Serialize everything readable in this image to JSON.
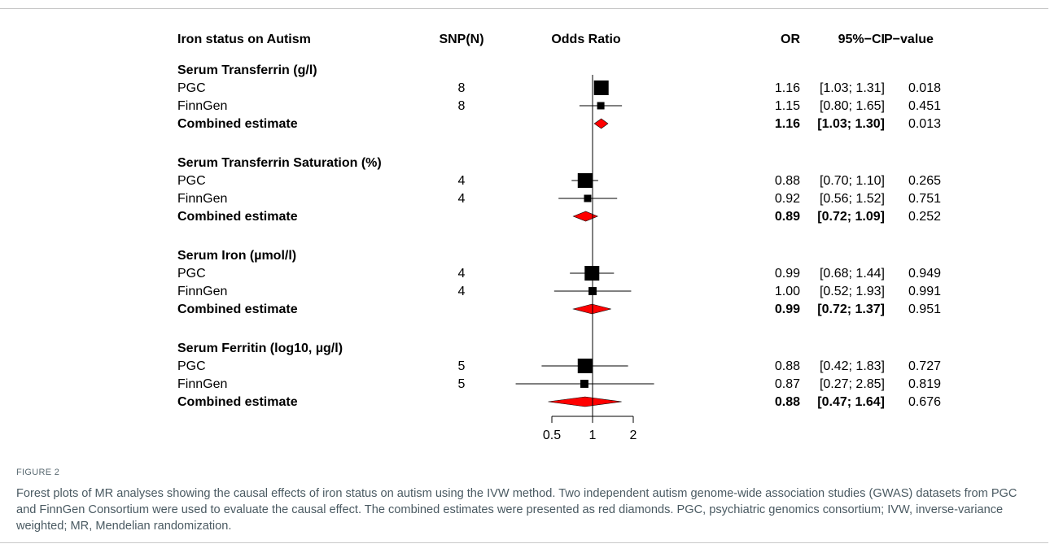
{
  "chart_data": {
    "type": "forest",
    "headers": {
      "study": "Iron status on Autism",
      "snp": "SNP(N)",
      "plot": "Odds Ratio",
      "or": "OR",
      "ci": "95%−CI",
      "p": "P−value"
    },
    "scale": "log",
    "xlim": [
      0.5,
      2
    ],
    "xticks": [
      {
        "value": 0.5,
        "label": "0.5"
      },
      {
        "value": 1,
        "label": "1"
      },
      {
        "value": 2,
        "label": "2"
      }
    ],
    "reference_line": 1,
    "groups": [
      {
        "title": "Serum Transferrin (g/l)",
        "rows": [
          {
            "label": "PGC",
            "snp": "8",
            "or": 1.16,
            "lo": 1.03,
            "hi": 1.31,
            "or_text": "1.16",
            "ci_text": "[1.03; 1.31]",
            "p_text": "0.018",
            "weight": 1.0
          },
          {
            "label": "FinnGen",
            "snp": "8",
            "or": 1.15,
            "lo": 0.8,
            "hi": 1.65,
            "or_text": "1.15",
            "ci_text": "[0.80; 1.65]",
            "p_text": "0.451",
            "weight": 0.5
          }
        ],
        "combined": {
          "label": "Combined estimate",
          "or": 1.16,
          "lo": 1.03,
          "hi": 1.3,
          "or_text": "1.16",
          "ci_text": "[1.03; 1.30]",
          "p_text": "0.013"
        }
      },
      {
        "title": "Serum Transferrin Saturation (%)",
        "rows": [
          {
            "label": "PGC",
            "snp": "4",
            "or": 0.88,
            "lo": 0.7,
            "hi": 1.1,
            "or_text": "0.88",
            "ci_text": "[0.70; 1.10]",
            "p_text": "0.265",
            "weight": 1.0
          },
          {
            "label": "FinnGen",
            "snp": "4",
            "or": 0.92,
            "lo": 0.56,
            "hi": 1.52,
            "or_text": "0.92",
            "ci_text": "[0.56; 1.52]",
            "p_text": "0.751",
            "weight": 0.5
          }
        ],
        "combined": {
          "label": "Combined estimate",
          "or": 0.89,
          "lo": 0.72,
          "hi": 1.09,
          "or_text": "0.89",
          "ci_text": "[0.72; 1.09]",
          "p_text": "0.252"
        }
      },
      {
        "title": "Serum Iron (µmol/l)",
        "rows": [
          {
            "label": "PGC",
            "snp": "4",
            "or": 0.99,
            "lo": 0.68,
            "hi": 1.44,
            "or_text": "0.99",
            "ci_text": "[0.68; 1.44]",
            "p_text": "0.949",
            "weight": 1.0
          },
          {
            "label": "FinnGen",
            "snp": "4",
            "or": 1.0,
            "lo": 0.52,
            "hi": 1.93,
            "or_text": "1.00",
            "ci_text": "[0.52; 1.93]",
            "p_text": "0.991",
            "weight": 0.55
          }
        ],
        "combined": {
          "label": "Combined estimate",
          "or": 0.99,
          "lo": 0.72,
          "hi": 1.37,
          "or_text": "0.99",
          "ci_text": "[0.72; 1.37]",
          "p_text": "0.951"
        }
      },
      {
        "title": "Serum Ferritin (log10, µg/l)",
        "rows": [
          {
            "label": "PGC",
            "snp": "5",
            "or": 0.88,
            "lo": 0.42,
            "hi": 1.83,
            "or_text": "0.88",
            "ci_text": "[0.42; 1.83]",
            "p_text": "0.727",
            "weight": 1.0
          },
          {
            "label": "FinnGen",
            "snp": "5",
            "or": 0.87,
            "lo": 0.27,
            "hi": 2.85,
            "or_text": "0.87",
            "ci_text": "[0.27; 2.85]",
            "p_text": "0.819",
            "weight": 0.55
          }
        ],
        "combined": {
          "label": "Combined estimate",
          "or": 0.88,
          "lo": 0.47,
          "hi": 1.64,
          "or_text": "0.88",
          "ci_text": "[0.47; 1.64]",
          "p_text": "0.676"
        }
      }
    ],
    "colors": {
      "square": "#000000",
      "diamond": "#ff0000",
      "line": "#000000"
    }
  },
  "caption": {
    "label": "FIGURE 2",
    "text": "Forest plots of MR analyses showing the causal effects of iron status on autism using the IVW method. Two independent autism genome-wide association studies (GWAS) datasets from PGC and FinnGen Consortium were used to evaluate the causal effect. The combined estimates were presented as red diamonds. PGC, psychiatric genomics consortium; IVW, inverse-variance weighted; MR, Mendelian randomization."
  }
}
